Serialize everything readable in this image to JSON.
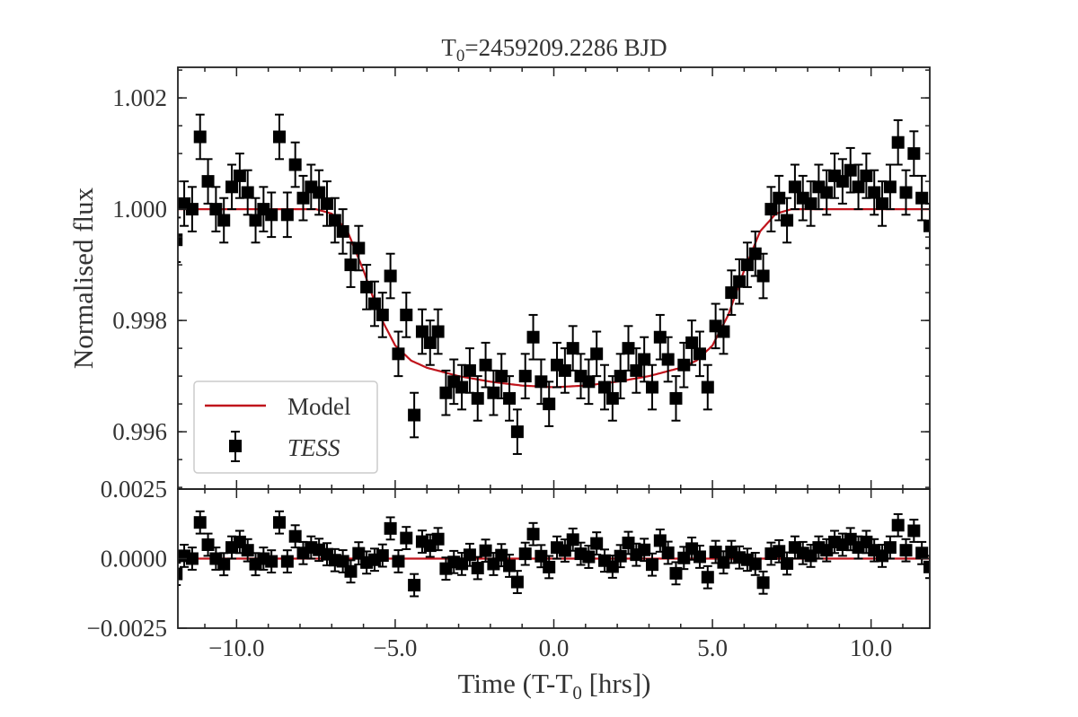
{
  "chart_data": [
    {
      "panel": "top",
      "type": "scatter",
      "title_parts": {
        "main": "T",
        "sub": "0",
        "rest": "=2459209.2286 BJD"
      },
      "ylabel": "Normalised flux",
      "xlim": [
        -11.85,
        11.85
      ],
      "ylim": [
        0.99497,
        1.00255
      ],
      "yticks": [
        1.002,
        1.0,
        0.998,
        0.996
      ],
      "ytick_labels": [
        "1.002",
        "1.000",
        "0.998",
        "0.996"
      ],
      "xticks": [
        -10,
        -5,
        0,
        5,
        10
      ],
      "grid": false,
      "legend": {
        "placement": "lower-left",
        "entries": [
          "Model",
          "TESS"
        ]
      },
      "colors": {
        "model": "#c0141c",
        "data": "#000000"
      },
      "error": 0.0004,
      "series": [
        {
          "name": "TESS",
          "marker": "square-with-errorbars",
          "x": [
            -11.9,
            -11.65,
            -11.4,
            -11.15,
            -10.9,
            -10.65,
            -10.4,
            -10.15,
            -9.9,
            -9.65,
            -9.4,
            -9.15,
            -8.9,
            -8.65,
            -8.4,
            -8.15,
            -7.9,
            -7.65,
            -7.4,
            -7.15,
            -6.9,
            -6.65,
            -6.4,
            -6.15,
            -5.9,
            -5.65,
            -5.4,
            -5.15,
            -4.9,
            -4.65,
            -4.4,
            -4.15,
            -3.9,
            -3.65,
            -3.4,
            -3.15,
            -2.9,
            -2.65,
            -2.4,
            -2.15,
            -1.9,
            -1.65,
            -1.4,
            -1.15,
            -0.9,
            -0.65,
            -0.4,
            -0.15,
            0.1,
            0.35,
            0.6,
            0.85,
            1.1,
            1.35,
            1.6,
            1.85,
            2.1,
            2.35,
            2.6,
            2.85,
            3.1,
            3.35,
            3.6,
            3.85,
            4.1,
            4.35,
            4.6,
            4.85,
            5.1,
            5.35,
            5.6,
            5.85,
            6.1,
            6.35,
            6.6,
            6.85,
            7.1,
            7.35,
            7.6,
            7.85,
            8.1,
            8.35,
            8.6,
            8.85,
            9.1,
            9.35,
            9.6,
            9.85,
            10.1,
            10.35,
            10.6,
            10.85,
            11.1,
            11.35,
            11.6,
            11.85
          ],
          "y": [
            0.99945,
            1.0001,
            1.0,
            1.0013,
            1.0005,
            1.0,
            0.9998,
            1.0004,
            1.0006,
            1.0003,
            0.9998,
            1.0,
            0.9999,
            1.0013,
            0.9999,
            1.0008,
            1.0002,
            1.0004,
            1.0003,
            1.0001,
            0.9998,
            0.9996,
            0.999,
            0.9993,
            0.9986,
            0.9983,
            0.9981,
            0.9988,
            0.9974,
            0.9981,
            0.9963,
            0.9978,
            0.9976,
            0.9978,
            0.9967,
            0.9969,
            0.9968,
            0.9971,
            0.9966,
            0.9972,
            0.9967,
            0.997,
            0.9966,
            0.996,
            0.997,
            0.9977,
            0.9969,
            0.9965,
            0.9972,
            0.9971,
            0.9975,
            0.997,
            0.9969,
            0.9974,
            0.9968,
            0.9966,
            0.997,
            0.9975,
            0.9971,
            0.9973,
            0.9968,
            0.9977,
            0.9973,
            0.9966,
            0.9972,
            0.9976,
            0.9974,
            0.9968,
            0.9979,
            0.9978,
            0.9985,
            0.9987,
            0.999,
            0.9992,
            0.9988,
            1.0,
            1.0002,
            0.9998,
            1.0004,
            1.0002,
            1.0001,
            1.0004,
            1.0003,
            1.0006,
            1.0005,
            1.0007,
            1.0004,
            1.0006,
            1.0003,
            1.0001,
            1.0004,
            1.0012,
            1.0003,
            1.001,
            1.0002,
            0.9997
          ]
        },
        {
          "name": "Model",
          "type": "line",
          "x": [
            -12,
            -7.5,
            -7.0,
            -6.5,
            -6.0,
            -5.5,
            -5.0,
            -4.5,
            -4.0,
            -3.0,
            -2.0,
            -1.0,
            0,
            1.0,
            2.0,
            3.0,
            4.0,
            4.5,
            5.0,
            5.5,
            6.0,
            6.5,
            7.0,
            7.5,
            12
          ],
          "y": [
            1.0,
            1.0,
            0.99992,
            0.9996,
            0.9989,
            0.9981,
            0.99755,
            0.99728,
            0.99715,
            0.997,
            0.9969,
            0.99683,
            0.9968,
            0.99683,
            0.9969,
            0.997,
            0.99715,
            0.99728,
            0.99755,
            0.9981,
            0.9989,
            0.9996,
            0.99992,
            1.0,
            1.0
          ]
        }
      ]
    },
    {
      "panel": "bottom",
      "type": "scatter",
      "description_of_values": "residuals (TESS minus Model)",
      "xlabel_parts": {
        "main": "Time (T-T",
        "sub": "0",
        "rest": " [hrs])"
      },
      "xlim": [
        -11.85,
        11.85
      ],
      "ylim": [
        -0.0025,
        0.0025
      ],
      "yticks": [
        0.0025,
        0.0,
        -0.0025
      ],
      "ytick_labels": [
        "0.0025",
        "0.0000",
        "−0.0025"
      ],
      "xticks": [
        -10,
        -5,
        0,
        5,
        10
      ],
      "xtick_labels": [
        "−10.0",
        "−5.0",
        "0.0",
        "5.0",
        "10.0"
      ]
    }
  ]
}
